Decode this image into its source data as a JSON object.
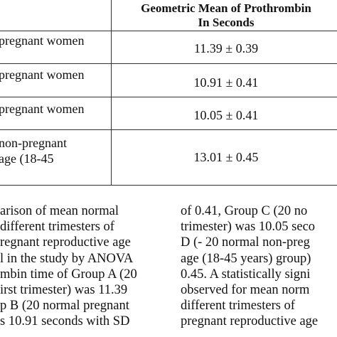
{
  "table": {
    "header": {
      "line1": "Geometric Mean of Prothrombin",
      "line2": "In Seconds"
    },
    "rows": [
      {
        "group": [
          "pregnant women"
        ],
        "value": "11.39 ± 0.39"
      },
      {
        "group": [
          "pregnant women"
        ],
        "value": "10.91 ± 0.41"
      },
      {
        "group": [
          "pregnant women"
        ],
        "value": "10.05 ± 0.41"
      },
      {
        "group": [
          "non-pregnant",
          "age (18-45"
        ],
        "value": "13.01 ± 0.45"
      }
    ]
  },
  "text_left": [
    "arison  of  mean  normal",
    "different   trimesters   of",
    "regnant  reproductive  age",
    "l  in  the  study  by  ANOVA",
    "mbin  time  of  Group  A  (20",
    "irst  trimester)  was  11.39",
    "p  B  (20  normal  pregnant",
    "s 10.91 seconds with SD"
  ],
  "text_right": [
    "of  0.41,  Group  C  (20  no",
    "trimester)  was  10.05  seco",
    "D  (-  20  normal  non-preg",
    "age  (18-45  years)  group)",
    "0.45.  A  statistically  signi",
    "observed  for  mean  norm",
    "different  trimesters  of",
    "pregnant  reproductive  age"
  ]
}
